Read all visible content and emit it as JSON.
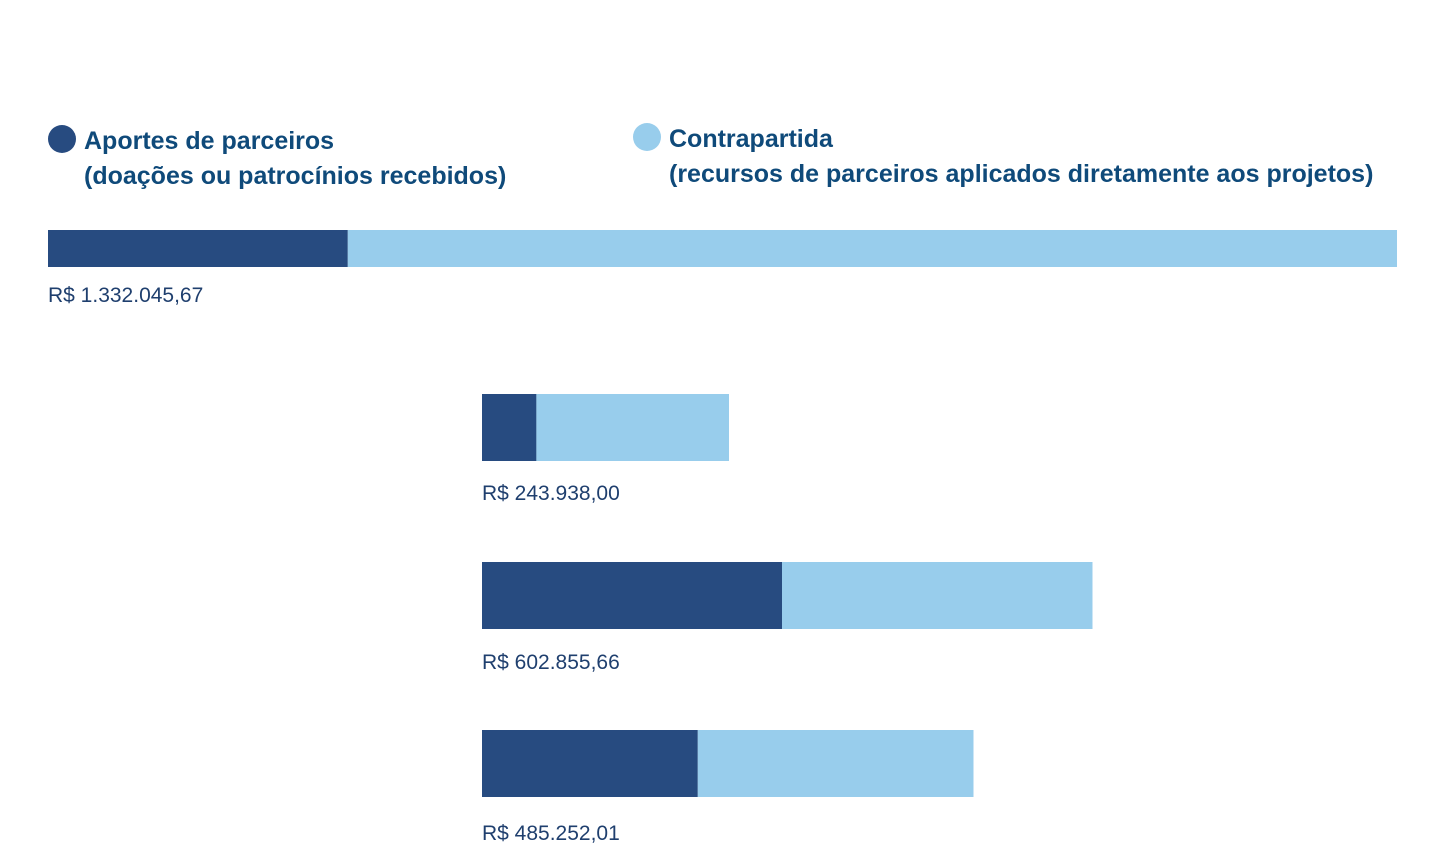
{
  "colors": {
    "aportes": "#274b80",
    "contrapartida": "#98cdec",
    "legend_text": "#0f4a7a",
    "label_text": "#1f3f6e"
  },
  "legend": [
    {
      "line1": "Aportes de parceiros",
      "line2": "(doações ou patrocínios recebidos)"
    },
    {
      "line1": "Contrapartida",
      "line2": "(recursos de parceiros aplicados diretamente aos projetos)"
    }
  ],
  "chart_data": {
    "type": "bar",
    "orientation": "horizontal",
    "stacked": true,
    "series": [
      {
        "name": "Aportes de parceiros (doações ou patrocínios recebidos)",
        "values": [
          296000,
          53700,
          296200,
          213100
        ]
      },
      {
        "name": "Contrapartida (recursos de parceiros aplicados diretamente aos projetos)",
        "values": [
          1036000,
          190200,
          306600,
          272200
        ]
      }
    ],
    "totals": [
      1332045.67,
      243938.0,
      602855.66,
      485252.01
    ],
    "labels": [
      "R$ 1.332.045,67",
      "R$ 243.938,00",
      "R$ 602.855,66",
      "R$ 485.252,01"
    ],
    "legend_position": "top",
    "grid": false
  }
}
